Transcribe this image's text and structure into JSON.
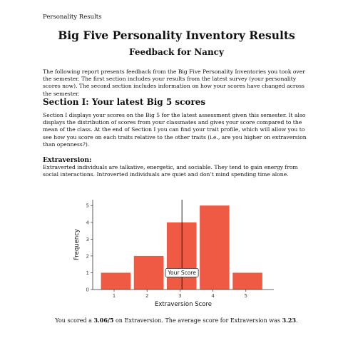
{
  "header": {
    "running_head": "Personality Results"
  },
  "title": "Big Five Personality Inventory Results",
  "subtitle": "Feedback for Nancy",
  "intro": "The following report presents feedback from the Big Five Personality Inventories you took over the semester. The first section includes your results from the latest survey (your personality scores now). The second section includes information on how your scores have changed across the semester.",
  "section1": {
    "heading": "Section I: Your latest Big 5 scores",
    "text": "Section I displays your scores on the Big 5 for the latest assessment given this semester. It also displays the distribution of scores from your classmates and gives your score compared to the mean of the class. At the end of Section I you can find your trait profile, which will allow you to see how you score on each traits relative to the other traits (i.e., are you higher on extraversion than openness?)."
  },
  "trait": {
    "heading": "Extraversion:",
    "description": "Extraverted individuals are talkative, energetic, and sociable. They tend to gain energy from social interactions. Introverted individuals are quiet and don’t mind spending time alone."
  },
  "chart_data": {
    "type": "bar",
    "xlabel": "Extraversion Score",
    "ylabel": "Frequency",
    "categories": [
      "1",
      "2",
      "3",
      "4",
      "5"
    ],
    "bins": [
      {
        "x_min": 0.6,
        "x_max": 1.5,
        "count": 1
      },
      {
        "x_min": 1.6,
        "x_max": 2.5,
        "count": 2
      },
      {
        "x_min": 2.6,
        "x_max": 3.5,
        "count": 4
      },
      {
        "x_min": 3.6,
        "x_max": 4.5,
        "count": 5
      },
      {
        "x_min": 4.6,
        "x_max": 5.5,
        "count": 1
      }
    ],
    "x_ticks": [
      1,
      2,
      3,
      4,
      5
    ],
    "y_ticks": [
      0,
      1,
      2,
      3,
      4,
      5
    ],
    "xlim": [
      0.35,
      5.85
    ],
    "ylim": [
      0,
      5.35
    ],
    "bar_color": "#ef5a45",
    "marker": {
      "value": 3.06,
      "label": "Your Score",
      "label_y": 1
    }
  },
  "summary": {
    "prefix": "You scored a ",
    "score": "3.06/5",
    "middle": " on Extraversion. The average score for Extraversion was ",
    "average": "3.23",
    "suffix": "."
  }
}
